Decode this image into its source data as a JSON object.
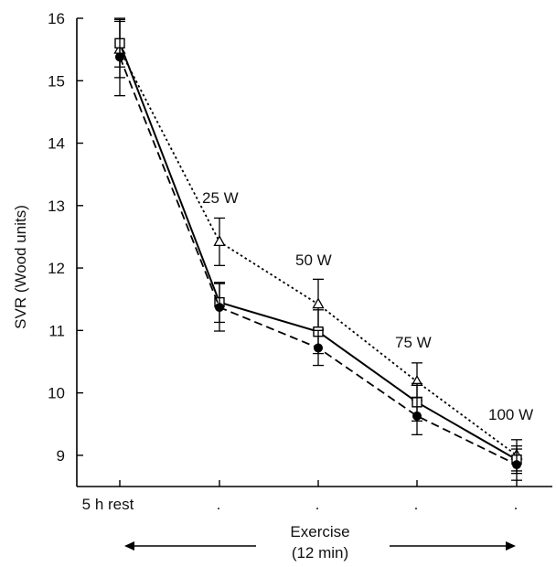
{
  "chart_data": {
    "type": "line",
    "title": "",
    "xlabel": "",
    "ylabel": "SVR (Wood units)",
    "ylim": [
      8.5,
      16
    ],
    "yticks": [
      9,
      10,
      11,
      12,
      13,
      14,
      15,
      16
    ],
    "categories": [
      "5 h rest",
      ".",
      ".",
      ".",
      "."
    ],
    "annotations": [
      "25 W",
      "50 W",
      "75 W",
      "100 W"
    ],
    "exercise_label": [
      "Exercise",
      "(12 min)"
    ],
    "grid": false,
    "series": [
      {
        "marker": "triangle-open",
        "line": "dotted",
        "color": "#000000",
        "values": [
          15.5,
          12.42,
          11.42,
          10.18,
          9.0
        ],
        "errors": [
          0.45,
          0.38,
          0.4,
          0.3,
          0.25
        ]
      },
      {
        "marker": "square-open",
        "line": "solid",
        "color": "#000000",
        "values": [
          15.6,
          11.45,
          10.98,
          9.85,
          8.93
        ],
        "errors": [
          0.38,
          0.32,
          0.35,
          0.3,
          0.22
        ]
      },
      {
        "marker": "circle-filled",
        "line": "dashed",
        "color": "#000000",
        "values": [
          15.38,
          11.37,
          10.72,
          9.63,
          8.85
        ],
        "errors": [
          0.62,
          0.38,
          0.28,
          0.3,
          0.25
        ]
      }
    ]
  }
}
